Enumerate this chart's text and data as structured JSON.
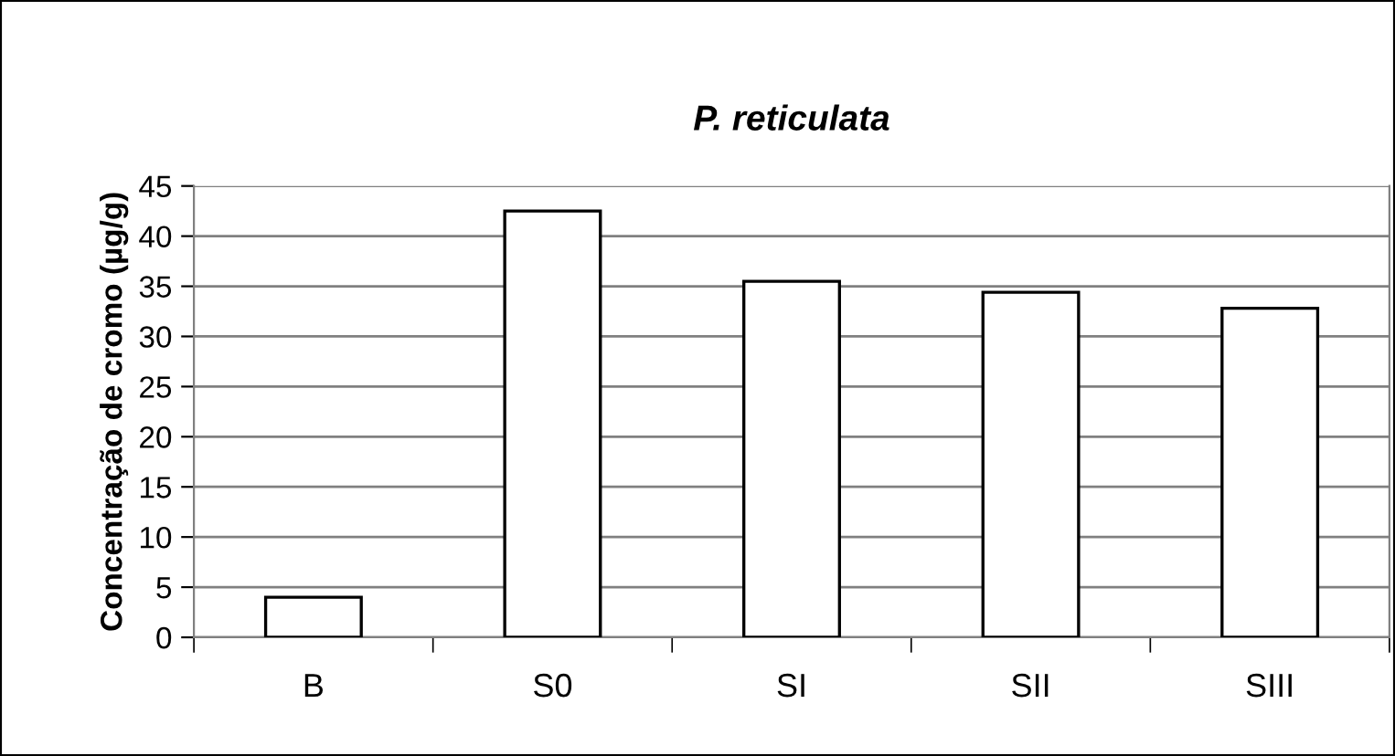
{
  "chart_data": {
    "type": "bar",
    "title": "P. reticulata",
    "ylabel": "Concentração de cromo (µg/g)",
    "categories": [
      "B",
      "S0",
      "SI",
      "SII",
      "SIII"
    ],
    "values": [
      4.0,
      42.5,
      35.5,
      34.4,
      32.8
    ],
    "color": "#ffffff",
    "ylim": [
      0,
      45
    ],
    "yticks": [
      0,
      5,
      10,
      15,
      20,
      25,
      30,
      35,
      40,
      45
    ],
    "grid": "y"
  }
}
